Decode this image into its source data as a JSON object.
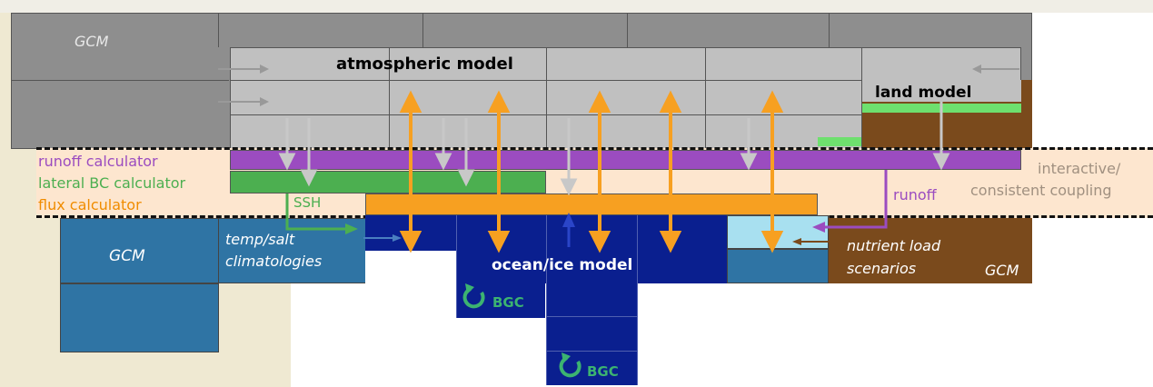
{
  "labels": {
    "gcm_top": "GCM",
    "atmospheric_model": "atmospheric model",
    "land_model": "land model",
    "runoff_calculator": "runoff calculator",
    "lateral_bc_calculator": "lateral BC calculator",
    "flux_calculator": "flux calculator",
    "ssh": "SSH",
    "runoff": "runoff",
    "interactive_line1": "interactive/",
    "interactive_line2": "consistent coupling",
    "gcm_left": "GCM",
    "temp_salt_line1": "temp/salt",
    "temp_salt_line2": "climatologies",
    "ocean_ice_model": "ocean/ice model",
    "nutrient_line1": "nutrient load",
    "nutrient_line2": "scenarios",
    "gcm_right": "GCM",
    "bgc_1": "BGC",
    "bgc_2": "BGC"
  },
  "colors": {
    "gcm_dark_gray": "#8e8e8e",
    "atmosphere_light_gray": "#c0c0c0",
    "land_brown": "#7a4a1c",
    "land_green": "#6ee06e",
    "runoff_purple": "#9b4cc0",
    "lateral_green": "#4caf50",
    "flux_orange": "#f7a021",
    "coupling_bg": "#fde6cf",
    "ocean_navy": "#0a1f8f",
    "gcm_blue": "#2f74a4",
    "light_cyan": "#a8e0f0",
    "arrow_orange": "#f7a021",
    "arrow_gray": "#c8c8c8"
  }
}
